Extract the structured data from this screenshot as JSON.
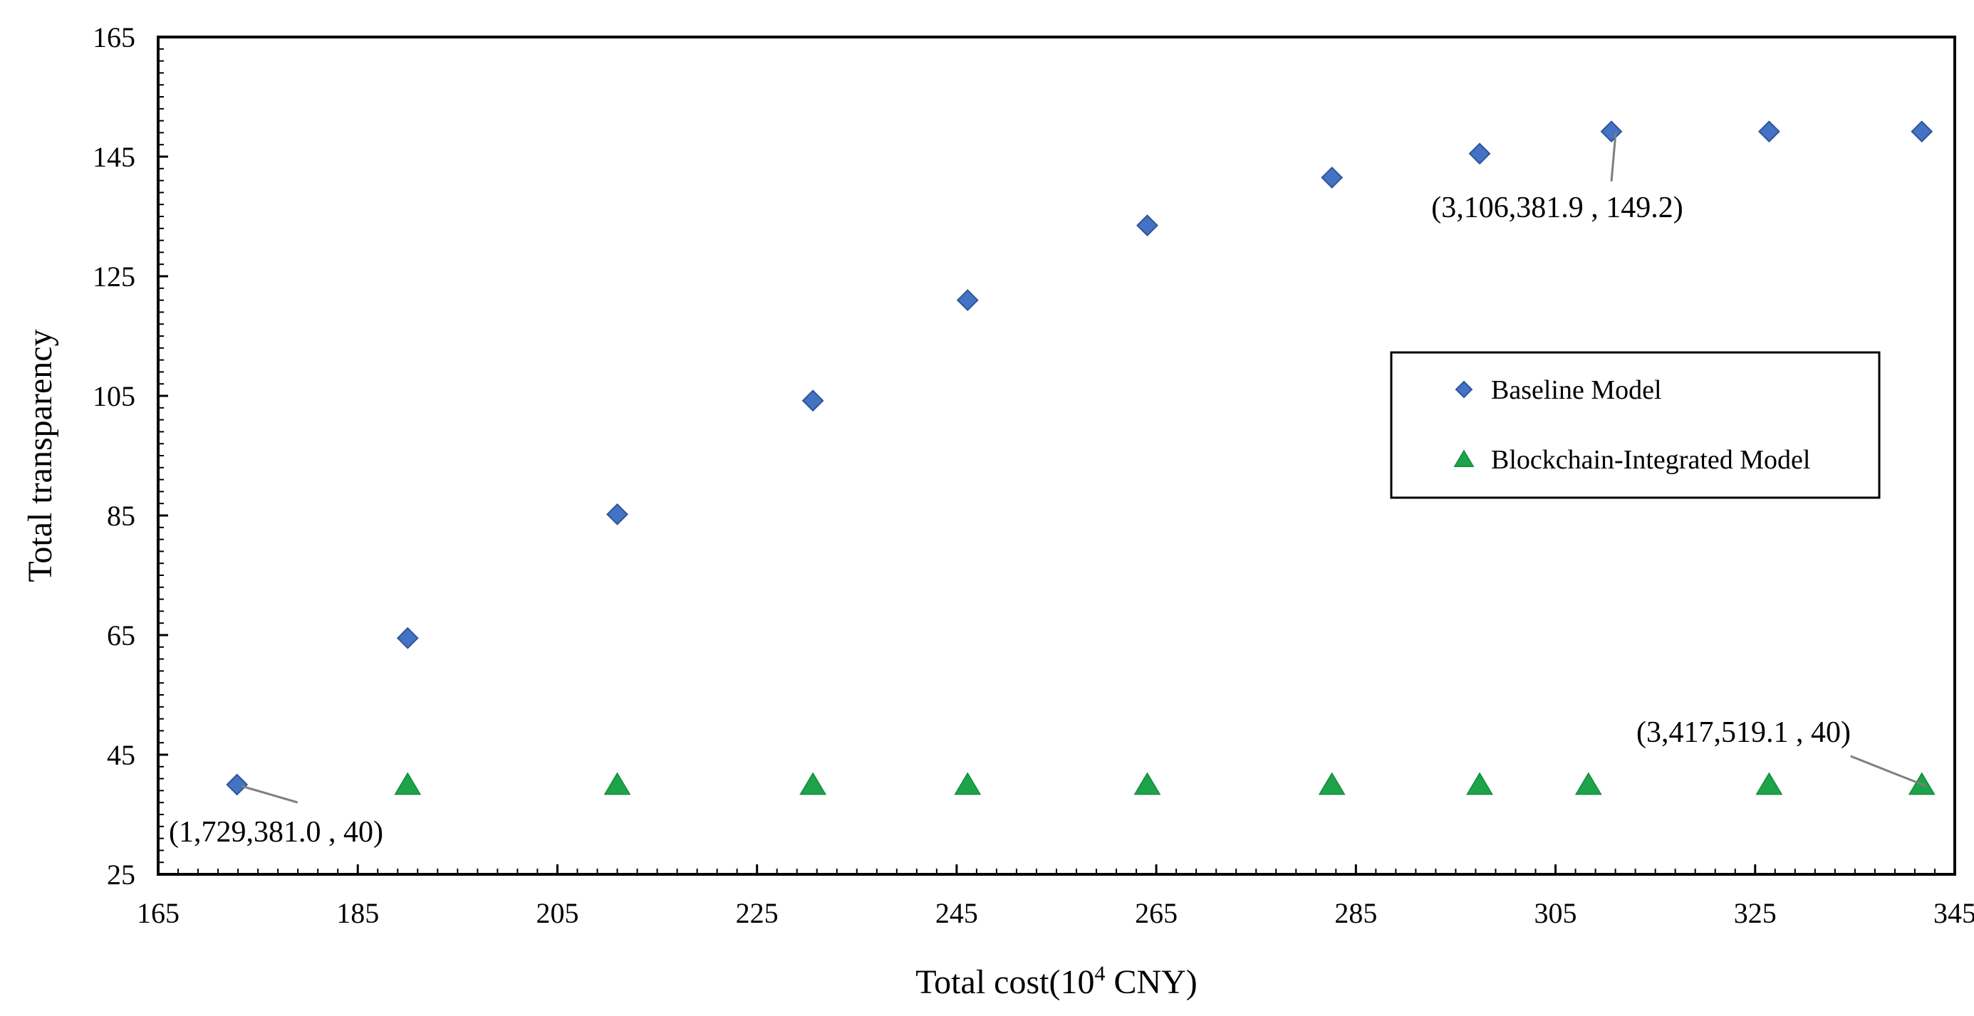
{
  "chart_data": {
    "type": "scatter",
    "xlabel": "Total cost(10",
    "xlabel_sup": "4",
    "xlabel_unit": " CNY)",
    "ylabel": "Total transparency",
    "xlim": [
      165,
      345
    ],
    "ylim": [
      25,
      165
    ],
    "xticks": [
      165,
      185,
      205,
      225,
      245,
      265,
      285,
      305,
      325,
      345
    ],
    "yticks": [
      25,
      45,
      65,
      85,
      105,
      125,
      145,
      165
    ],
    "grid": false,
    "legend_position": "right-middle",
    "series": [
      {
        "name": "Baseline Model",
        "marker": "diamond",
        "color": "#4472C4",
        "x": [
          172.9,
          190.0,
          211.0,
          230.6,
          246.1,
          264.1,
          282.6,
          297.4,
          310.6,
          326.4,
          341.7
        ],
        "y": [
          40,
          64.5,
          85.2,
          104.2,
          121.0,
          133.5,
          141.5,
          145.5,
          149.2,
          149.2,
          149.2
        ]
      },
      {
        "name": "Blockchain-Integrated Model",
        "marker": "triangle",
        "color": "#1DA34A",
        "x": [
          190.0,
          211.0,
          230.6,
          246.1,
          264.1,
          282.6,
          297.4,
          308.3,
          326.4,
          341.7
        ],
        "y": [
          40,
          40,
          40,
          40,
          40,
          40,
          40,
          40,
          40,
          40
        ]
      }
    ],
    "annotations": [
      {
        "text": "(1,729,381.0 , 40)",
        "x": 172.9,
        "y": 40
      },
      {
        "text": "(3,106,381.9 , 149.2)",
        "x": 310.6,
        "y": 149.2
      },
      {
        "text": "(3,417,519.1 , 40)",
        "x": 341.7,
        "y": 40
      }
    ]
  }
}
